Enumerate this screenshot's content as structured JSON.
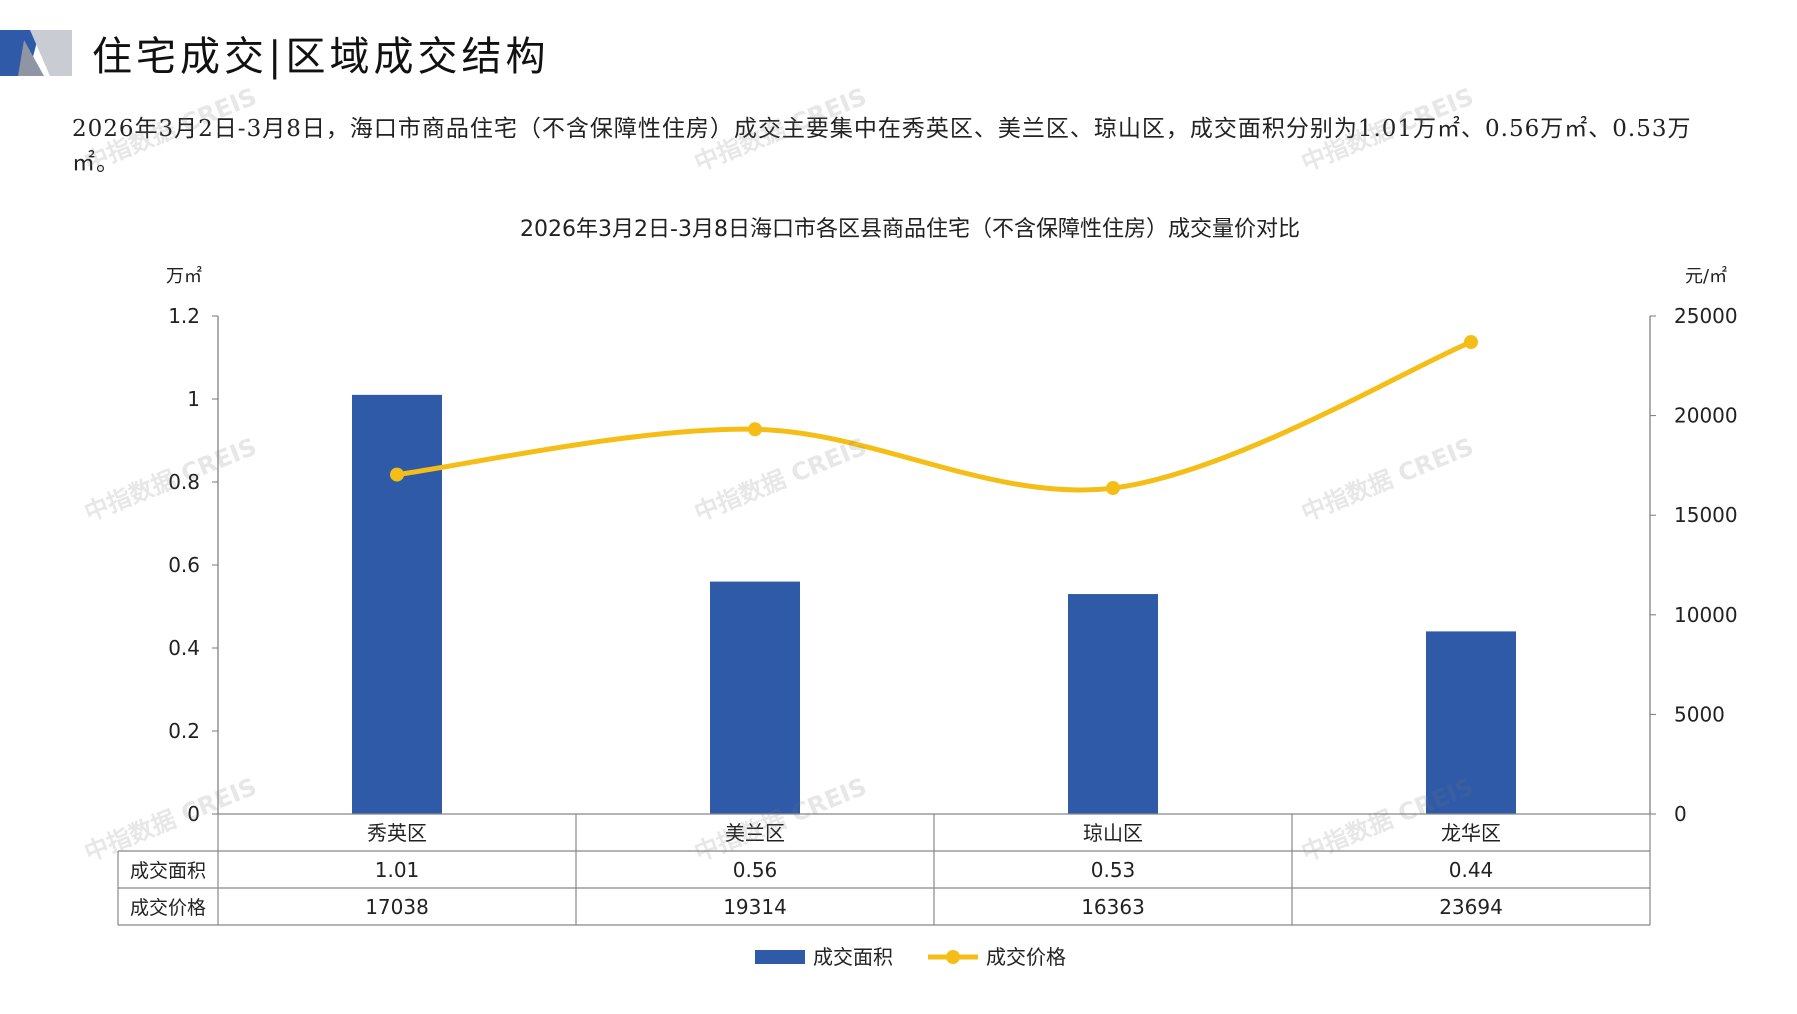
{
  "header": {
    "title": "住宅成交|区域成交结构"
  },
  "summary": "2026年3月2日-3月8日，海口市商品住宅（不含保障性住房）成交主要集中在秀英区、美兰区、琼山区，成交面积分别为1.01万㎡、0.56万㎡、0.53万㎡。",
  "watermark": "中指数据 CREIS",
  "chart_data": {
    "type": "bar",
    "title": "2026年3月2日-3月8日海口市各区县商品住宅（不含保障性住房）成交量价对比",
    "categories": [
      "秀英区",
      "美兰区",
      "琼山区",
      "龙华区"
    ],
    "left_axis": {
      "unit": "万㎡",
      "ylim": [
        0,
        1.2
      ],
      "ticks": [
        "1.2",
        "1",
        "0.8",
        "0.6",
        "0.4",
        "0.2",
        "0"
      ]
    },
    "right_axis": {
      "unit": "元/㎡",
      "ylim": [
        0,
        25000
      ],
      "ticks": [
        "25000",
        "20000",
        "15000",
        "10000",
        "5000",
        "0"
      ]
    },
    "series": [
      {
        "name": "成交面积",
        "type": "bar",
        "axis": "left",
        "color": "#2E5AA7",
        "values": [
          1.01,
          0.56,
          0.53,
          0.44
        ],
        "labels": [
          "1.01",
          "0.56",
          "0.53",
          "0.44"
        ]
      },
      {
        "name": "成交价格",
        "type": "line",
        "axis": "right",
        "color": "#F5BE16",
        "values": [
          17038,
          19314,
          16363,
          23694
        ],
        "labels": [
          "17038",
          "19314",
          "16363",
          "23694"
        ]
      }
    ],
    "legend": "bottom",
    "data_table": true
  }
}
